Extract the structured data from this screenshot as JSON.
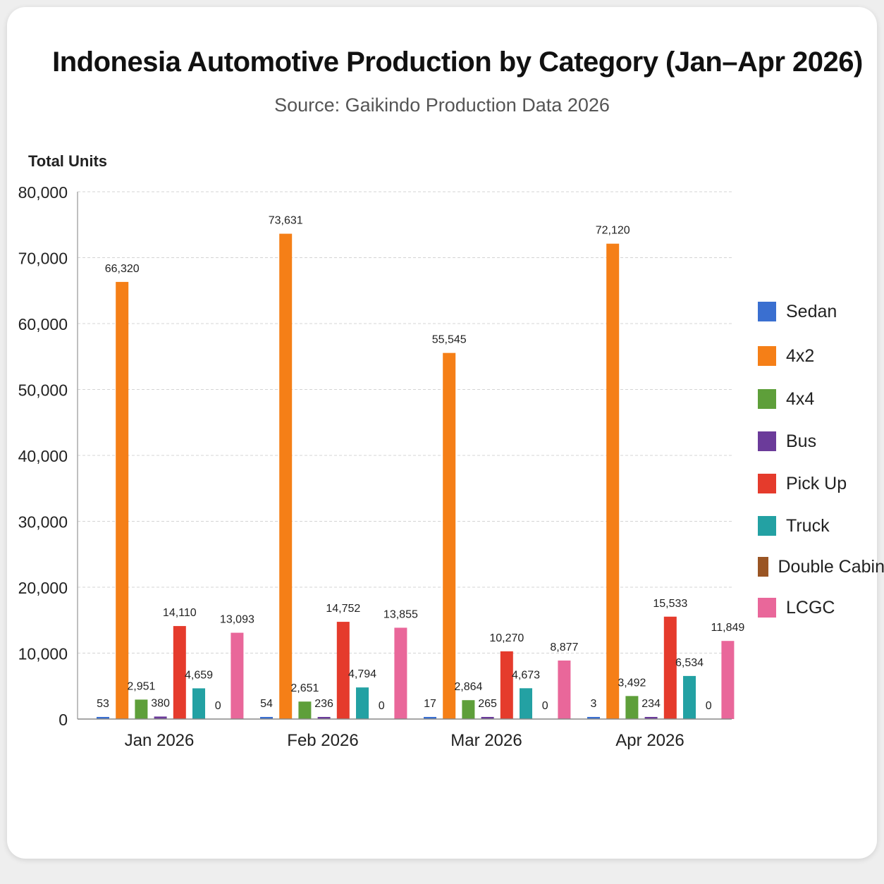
{
  "chart_data": {
    "type": "bar",
    "title": "Indonesia Automotive Production by Category (Jan–Apr 2026)",
    "subtitle": "Source: Gaikindo Production Data 2026",
    "ylabel": "Total Units",
    "xlabel": "",
    "ylim": [
      0,
      80000
    ],
    "yticks": [
      "0",
      "10,000",
      "20,000",
      "30,000",
      "40,000",
      "50,000",
      "60,000",
      "70,000",
      "80,000"
    ],
    "grid": true,
    "legend_position": "right",
    "categories": [
      "Jan 2026",
      "Feb 2026",
      "Mar 2026",
      "Apr 2026"
    ],
    "series": [
      {
        "name": "Sedan",
        "color": "#3a6fd0",
        "values": [
          53,
          54,
          17,
          3
        ],
        "labels": [
          "53",
          "54",
          "17",
          "3"
        ]
      },
      {
        "name": "4x2",
        "color": "#f57f17",
        "values": [
          66320,
          73631,
          55545,
          72120
        ],
        "labels": [
          "66,320",
          "73,631",
          "55,545",
          "72,120"
        ]
      },
      {
        "name": "4x4",
        "color": "#5e9f3a",
        "values": [
          2951,
          2651,
          2864,
          3492
        ],
        "labels": [
          "2,951",
          "2,651",
          "2,864",
          "3,492"
        ]
      },
      {
        "name": "Bus",
        "color": "#6b3b9a",
        "values": [
          380,
          236,
          265,
          234
        ],
        "labels": [
          "380",
          "236",
          "265",
          "234"
        ]
      },
      {
        "name": "Pick Up",
        "color": "#e53b2c",
        "values": [
          14110,
          14752,
          10270,
          15533
        ],
        "labels": [
          "14,110",
          "14,752",
          "10,270",
          "15,533"
        ]
      },
      {
        "name": "Truck",
        "color": "#23a1a3",
        "values": [
          4659,
          4794,
          4673,
          6534
        ],
        "labels": [
          "4,659",
          "4,794",
          "4,673",
          "6,534"
        ]
      },
      {
        "name": "Double Cabin",
        "color": "#9a5524",
        "values": [
          0,
          0,
          0,
          0
        ],
        "labels": [
          "0",
          "0",
          "0",
          "0"
        ]
      },
      {
        "name": "LCGC",
        "color": "#e9679a",
        "values": [
          13093,
          13855,
          8877,
          11849
        ],
        "labels": [
          "13,093",
          "13,855",
          "8,877",
          "11,849"
        ]
      }
    ]
  }
}
